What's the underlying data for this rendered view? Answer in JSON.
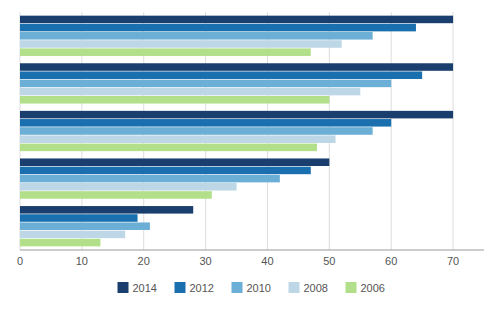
{
  "chart_data": {
    "type": "bar",
    "orientation": "horizontal",
    "categories": [
      null,
      null,
      null,
      null,
      null
    ],
    "series": [
      {
        "name": "2014",
        "color": "#1a3f6f",
        "values": [
          70,
          70,
          70,
          50,
          28
        ]
      },
      {
        "name": "2012",
        "color": "#1a6faf",
        "values": [
          64,
          65,
          60,
          47,
          19
        ]
      },
      {
        "name": "2010",
        "color": "#6baed6",
        "values": [
          57,
          60,
          57,
          42,
          21
        ]
      },
      {
        "name": "2008",
        "color": "#bdd7e7",
        "values": [
          52,
          55,
          51,
          35,
          17
        ]
      },
      {
        "name": "2006",
        "color": "#b2df8a",
        "values": [
          47,
          50,
          48,
          31,
          13
        ]
      }
    ],
    "xlim": [
      0,
      75
    ],
    "xticks": [
      0,
      10,
      20,
      30,
      40,
      50,
      60,
      70
    ],
    "grid": true,
    "legend": "bottom",
    "tick_labels": "x"
  }
}
